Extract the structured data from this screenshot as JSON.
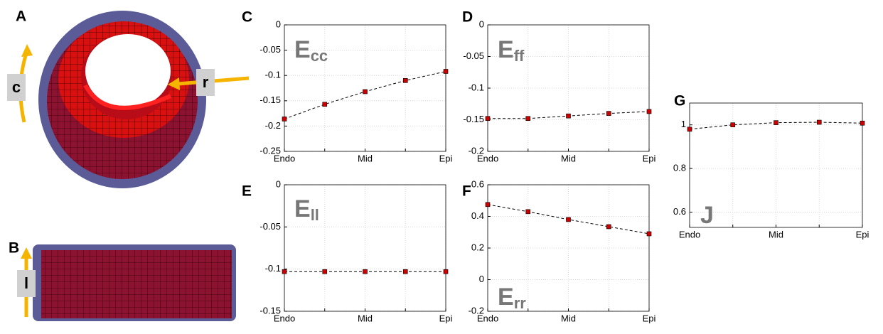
{
  "renderings": [
    {
      "panel": "A",
      "axes": [
        "c",
        "r"
      ]
    },
    {
      "panel": "B",
      "axes": [
        "l"
      ]
    }
  ],
  "chart_data": [
    {
      "type": "line",
      "panel": "C",
      "title": {
        "main": "E",
        "sub": "cc"
      },
      "categories": [
        "Endo",
        null,
        "Mid",
        null,
        "Epi"
      ],
      "values": [
        -0.186,
        -0.157,
        -0.132,
        -0.11,
        -0.092
      ],
      "color": "#cc0000",
      "line_style": "dashed",
      "ylim": [
        -0.25,
        0
      ],
      "yticks": [
        0,
        -0.05,
        -0.1,
        -0.15,
        -0.2,
        -0.25
      ],
      "grid": true
    },
    {
      "type": "line",
      "panel": "D",
      "title": {
        "main": "E",
        "sub": "ff"
      },
      "categories": [
        "Endo",
        null,
        "Mid",
        null,
        "Epi"
      ],
      "values": [
        -0.148,
        -0.148,
        -0.144,
        -0.14,
        -0.137
      ],
      "color": "#cc0000",
      "line_style": "dashed",
      "ylim": [
        -0.2,
        0
      ],
      "yticks": [
        0,
        -0.05,
        -0.1,
        -0.15,
        -0.2
      ],
      "grid": true
    },
    {
      "type": "line",
      "panel": "E",
      "title": {
        "main": "E",
        "sub": "ll"
      },
      "categories": [
        "Endo",
        null,
        "Mid",
        null,
        "Epi"
      ],
      "values": [
        -0.103,
        -0.103,
        -0.103,
        -0.103,
        -0.103
      ],
      "color": "#cc0000",
      "line_style": "dashed",
      "ylim": [
        -0.15,
        0
      ],
      "yticks": [
        0,
        -0.05,
        -0.1,
        -0.15
      ],
      "grid": true
    },
    {
      "type": "line",
      "panel": "F",
      "title": {
        "main": "E",
        "sub": "rr"
      },
      "categories": [
        "Endo",
        null,
        "Mid",
        null,
        "Epi"
      ],
      "values": [
        0.475,
        0.43,
        0.38,
        0.335,
        0.29
      ],
      "color": "#cc0000",
      "line_style": "dashed",
      "ylim": [
        -0.2,
        0.6
      ],
      "yticks": [
        0.6,
        0.4,
        0.2,
        0,
        -0.2
      ],
      "grid": true
    },
    {
      "type": "line",
      "panel": "G",
      "title": {
        "main": "J"
      },
      "categories": [
        "Endo",
        null,
        "Mid",
        null,
        "Epi"
      ],
      "values": [
        0.98,
        1.0,
        1.01,
        1.012,
        1.008
      ],
      "color": "#cc0000",
      "line_style": "dashed",
      "ylim": [
        0.53,
        1.1
      ],
      "yticks": [
        1,
        0.8,
        0.6
      ],
      "grid": true
    }
  ]
}
